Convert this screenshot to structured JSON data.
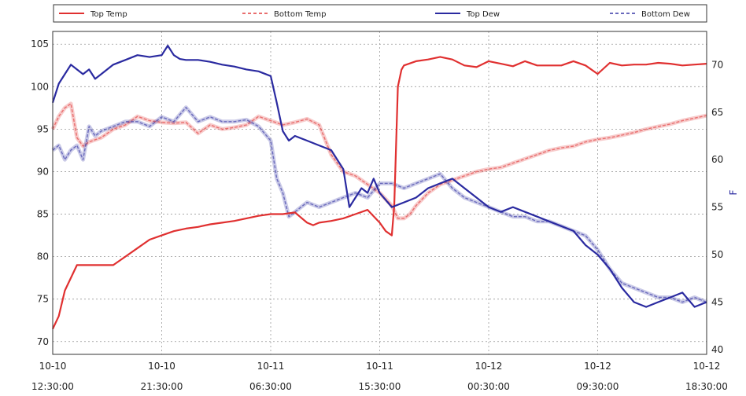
{
  "chart_data": {
    "type": "line",
    "grid": true,
    "legend_position": "top",
    "x_labels": [
      [
        "10-10",
        "12:30:00"
      ],
      [
        "10-10",
        "21:30:00"
      ],
      [
        "10-11",
        "06:30:00"
      ],
      [
        "10-11",
        "15:30:00"
      ],
      [
        "10-12",
        "00:30:00"
      ],
      [
        "10-12",
        "09:30:00"
      ],
      [
        "10-12",
        "18:30:00"
      ]
    ],
    "x_unit": "hours since 10-10 12:30:00",
    "xlim": [
      0,
      54
    ],
    "left_axis": {
      "label": "",
      "ylim": [
        68.5,
        106.5
      ],
      "ticks": [
        70,
        75,
        80,
        85,
        90,
        95,
        100,
        105
      ]
    },
    "right_axis": {
      "label": "F",
      "ylim": [
        39.5,
        73.5
      ],
      "ticks": [
        40,
        45,
        50,
        55,
        60,
        65,
        70
      ]
    },
    "series": [
      {
        "name": "Top Temp",
        "axis": "left",
        "color": "#e03030",
        "dash": "solid",
        "x": [
          0,
          0.5,
          1,
          2,
          3,
          5,
          6,
          7,
          8,
          9,
          10,
          11,
          12,
          13,
          14,
          15,
          16,
          17,
          18,
          19,
          20,
          21,
          21.5,
          22,
          23,
          24,
          25,
          26,
          27,
          27.5,
          28,
          28.2,
          28.5,
          28.8,
          29,
          30,
          31,
          32,
          33,
          34,
          35,
          36,
          37,
          38,
          39,
          40,
          41,
          42,
          43,
          44,
          45,
          46,
          47,
          48,
          49,
          50,
          51,
          52,
          53,
          54
        ],
        "y": [
          71.5,
          73,
          76,
          79,
          79,
          79,
          80,
          81,
          82,
          82.5,
          83,
          83.3,
          83.5,
          83.8,
          84,
          84.2,
          84.5,
          84.8,
          85,
          85,
          85.2,
          84,
          83.7,
          84,
          84.2,
          84.5,
          85,
          85.5,
          84,
          83,
          82.5,
          86,
          100,
          102,
          102.5,
          103,
          103.2,
          103.5,
          103.2,
          102.5,
          102.3,
          103,
          102.7,
          102.4,
          103,
          102.5,
          102.5,
          102.5,
          103,
          102.5,
          101.5,
          102.8,
          102.5,
          102.6,
          102.6,
          102.8,
          102.7,
          102.5,
          102.6,
          102.7
        ]
      },
      {
        "name": "Bottom Temp",
        "axis": "left",
        "color": "#e03030",
        "dash": "dashed",
        "x": [
          0,
          0.5,
          1,
          1.5,
          2,
          2.5,
          3,
          4,
          5,
          6,
          7,
          8,
          9,
          10,
          11,
          12,
          13,
          14,
          15,
          16,
          17,
          18,
          19,
          20,
          21,
          22,
          23,
          24,
          25,
          26,
          27,
          28,
          28.5,
          29,
          29.5,
          30,
          31,
          32,
          33,
          34,
          35,
          36,
          37,
          38,
          39,
          40,
          41,
          42,
          43,
          44,
          45,
          46,
          47,
          48,
          49,
          50,
          51,
          52,
          53,
          54
        ],
        "y": [
          95,
          96.5,
          97.5,
          98,
          94,
          93,
          93.5,
          94,
          95,
          95.5,
          96.5,
          96,
          95.8,
          95.7,
          95.8,
          94.5,
          95.5,
          95,
          95.2,
          95.5,
          96.5,
          96,
          95.5,
          95.8,
          96.2,
          95.5,
          92,
          90,
          89.5,
          88.5,
          87.5,
          86,
          84.5,
          84.5,
          85,
          86,
          87.5,
          88.5,
          89,
          89.5,
          90,
          90.3,
          90.5,
          91,
          91.5,
          92,
          92.5,
          92.8,
          93,
          93.5,
          93.8,
          94,
          94.3,
          94.6,
          95,
          95.3,
          95.6,
          96,
          96.3,
          96.6
        ]
      },
      {
        "name": "Top Dew",
        "axis": "right",
        "color": "#2a2aa0",
        "dash": "solid",
        "x": [
          0,
          0.5,
          1,
          1.5,
          2,
          2.5,
          3,
          3.5,
          4,
          5,
          6,
          7,
          8,
          9,
          9.5,
          10,
          10.5,
          11,
          12,
          13,
          14,
          15,
          16,
          17,
          18,
          18.5,
          19,
          19.5,
          20,
          21,
          22,
          23,
          24,
          24.5,
          25,
          25.5,
          26,
          26.5,
          27,
          28,
          29,
          30,
          31,
          32,
          33,
          34,
          35,
          36,
          37,
          38,
          39,
          40,
          41,
          42,
          43,
          44,
          45,
          46,
          47,
          48,
          49,
          50,
          51,
          52,
          53,
          54
        ],
        "y": [
          66,
          68,
          69,
          70,
          69.5,
          69,
          69.5,
          68.5,
          69,
          70,
          70.5,
          71,
          70.8,
          71,
          72,
          71,
          70.6,
          70.5,
          70.5,
          70.3,
          70,
          69.8,
          69.5,
          69.3,
          68.8,
          66,
          63,
          62,
          62.5,
          62,
          61.5,
          61,
          59,
          55,
          56,
          57,
          56.5,
          58,
          56.5,
          55,
          55.5,
          56,
          57,
          57.5,
          58,
          57,
          56,
          55,
          54.5,
          55,
          54.5,
          54,
          53.5,
          53,
          52.5,
          51,
          50,
          48.5,
          46.5,
          45,
          44.5,
          45,
          45.5,
          46,
          44.5,
          45
        ]
      },
      {
        "name": "Bottom Dew",
        "axis": "right",
        "color": "#2a2aa0",
        "dash": "dashed",
        "x": [
          0,
          0.5,
          1,
          1.5,
          2,
          2.5,
          3,
          3.5,
          4,
          5,
          6,
          7,
          8,
          9,
          10,
          11,
          12,
          13,
          14,
          15,
          16,
          17,
          18,
          18.5,
          19,
          19.5,
          20,
          20.5,
          21,
          22,
          23,
          24,
          25,
          26,
          27,
          28,
          29,
          30,
          31,
          32,
          33,
          34,
          35,
          36,
          37,
          38,
          39,
          40,
          41,
          42,
          43,
          44,
          45,
          46,
          47,
          48,
          49,
          50,
          51,
          52,
          53,
          54
        ],
        "y": [
          61,
          61.5,
          60,
          61,
          61.5,
          60,
          63.5,
          62.5,
          63,
          63.5,
          64,
          64,
          63.5,
          64.5,
          64,
          65.5,
          64,
          64.5,
          64,
          64,
          64.2,
          63.5,
          62,
          58,
          56.5,
          54,
          54.5,
          55,
          55.5,
          55,
          55.5,
          56,
          56.5,
          56,
          57.5,
          57.5,
          57,
          57.5,
          58,
          58.5,
          57,
          56,
          55.5,
          55,
          54.5,
          54,
          54,
          53.5,
          53.5,
          53,
          52.5,
          52,
          50.5,
          48.5,
          47,
          46.5,
          46,
          45.5,
          45.5,
          45,
          45.5,
          45
        ]
      }
    ]
  }
}
